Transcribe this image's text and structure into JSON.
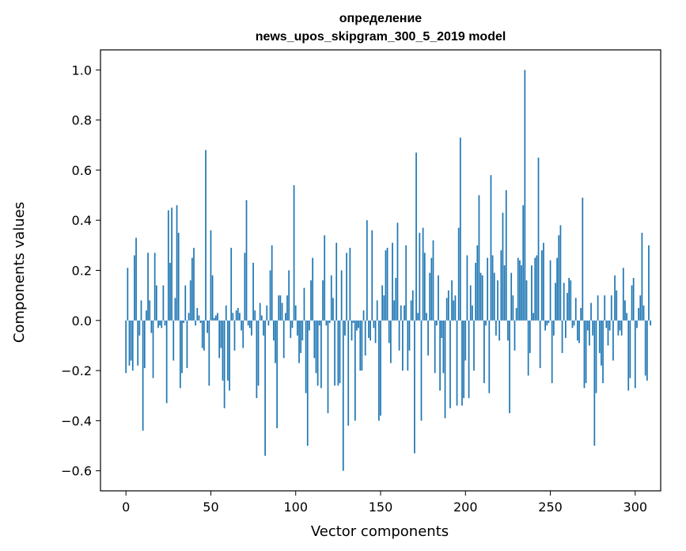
{
  "chart_data": {
    "type": "bar",
    "title_lines": [
      "определение",
      "news_upos_skipgram_300_5_2019 model"
    ],
    "xlabel": "Vector components",
    "ylabel": "Components values",
    "xlim": [
      -15,
      315
    ],
    "ylim": [
      -0.68,
      1.08
    ],
    "x_ticks": [
      0,
      50,
      100,
      150,
      200,
      250,
      300
    ],
    "y_ticks": [
      -0.6,
      -0.4,
      -0.2,
      0.0,
      0.2,
      0.4,
      0.6,
      0.8,
      1.0
    ],
    "y_tick_labels": [
      "−0.6",
      "−0.4",
      "−0.2",
      "0.0",
      "0.2",
      "0.4",
      "0.6",
      "0.8",
      "1.0"
    ],
    "grid": false,
    "bar_color": "#1f77b4",
    "values": [
      -0.21,
      0.21,
      -0.18,
      -0.16,
      -0.2,
      0.26,
      0.33,
      -0.18,
      -0.06,
      0.08,
      -0.44,
      -0.19,
      0.04,
      0.27,
      0.08,
      -0.05,
      -0.23,
      0.27,
      0.14,
      -0.03,
      -0.02,
      -0.03,
      0.14,
      -0.02,
      -0.33,
      0.44,
      0.23,
      0.45,
      -0.16,
      0.09,
      0.46,
      0.35,
      -0.27,
      -0.21,
      -0.01,
      0.14,
      -0.19,
      0.03,
      0.16,
      0.25,
      0.29,
      -0.02,
      0.05,
      0.02,
      -0.01,
      -0.11,
      -0.12,
      0.68,
      -0.05,
      -0.26,
      0.36,
      0.18,
      0.01,
      0.02,
      0.03,
      -0.15,
      -0.11,
      -0.24,
      -0.35,
      0.06,
      -0.24,
      -0.28,
      0.29,
      0.03,
      -0.12,
      0.04,
      0.05,
      0.03,
      -0.04,
      -0.11,
      0.27,
      0.48,
      -0.02,
      -0.03,
      -0.06,
      0.23,
      0.04,
      -0.31,
      -0.26,
      0.07,
      0.02,
      -0.06,
      -0.54,
      0.06,
      -0.02,
      0.2,
      0.3,
      -0.08,
      -0.17,
      -0.43,
      0.1,
      0.1,
      0.07,
      -0.15,
      0.03,
      0.1,
      0.2,
      -0.07,
      -0.03,
      0.54,
      0.06,
      -0.06,
      -0.17,
      -0.13,
      -0.08,
      0.13,
      -0.29,
      -0.5,
      -0.04,
      0.16,
      0.25,
      -0.15,
      -0.21,
      -0.26,
      -0.02,
      -0.27,
      0.16,
      0.34,
      -0.02,
      -0.37,
      -0.01,
      0.18,
      0.09,
      -0.26,
      0.31,
      -0.26,
      -0.25,
      0.2,
      -0.6,
      -0.06,
      0.27,
      -0.42,
      0.29,
      -0.08,
      -0.01,
      -0.4,
      -0.04,
      -0.03,
      -0.2,
      -0.2,
      0.04,
      -0.14,
      0.4,
      -0.07,
      -0.08,
      0.36,
      -0.03,
      -0.09,
      0.08,
      -0.4,
      -0.38,
      0.14,
      0.1,
      0.28,
      0.29,
      -0.09,
      -0.17,
      0.31,
      0.08,
      0.17,
      0.39,
      -0.12,
      0.06,
      -0.2,
      0.06,
      0.3,
      -0.2,
      -0.12,
      0.08,
      0.12,
      -0.53,
      0.67,
      0.03,
      0.35,
      -0.4,
      0.37,
      0.27,
      0.03,
      -0.14,
      0.19,
      0.25,
      0.32,
      -0.21,
      -0.02,
      0.18,
      -0.28,
      -0.07,
      -0.21,
      -0.39,
      0.09,
      0.12,
      -0.35,
      0.16,
      0.08,
      0.1,
      -0.34,
      0.37,
      0.73,
      -0.34,
      -0.31,
      -0.16,
      0.26,
      -0.31,
      0.14,
      0.06,
      -0.2,
      0.23,
      0.3,
      0.5,
      0.19,
      0.18,
      -0.25,
      -0.02,
      0.25,
      -0.29,
      0.58,
      0.26,
      0.19,
      -0.06,
      0.16,
      -0.08,
      0.28,
      0.43,
      0.22,
      0.52,
      -0.08,
      -0.37,
      0.19,
      0.1,
      -0.12,
      0.05,
      0.25,
      0.24,
      0.22,
      0.46,
      1.0,
      0.16,
      -0.22,
      -0.13,
      0.22,
      0.03,
      0.25,
      0.26,
      0.65,
      -0.19,
      0.28,
      0.31,
      -0.04,
      -0.02,
      -0.01,
      0.24,
      -0.25,
      -0.06,
      0.15,
      0.25,
      0.34,
      0.38,
      -0.13,
      0.15,
      -0.07,
      0.11,
      0.17,
      0.16,
      -0.03,
      -0.02,
      0.09,
      -0.08,
      -0.09,
      0.05,
      0.49,
      -0.27,
      -0.25,
      -0.04,
      -0.1,
      0.07,
      -0.06,
      -0.5,
      -0.29,
      0.1,
      -0.13,
      -0.18,
      -0.25,
      0.1,
      -0.03,
      -0.1,
      -0.04,
      0.1,
      -0.16,
      0.18,
      0.12,
      -0.06,
      -0.04,
      -0.06,
      0.21,
      0.08,
      0.03,
      -0.28,
      -0.23,
      0.14,
      0.17,
      -0.27,
      -0.03,
      0.05,
      0.1,
      0.35,
      0.06,
      -0.22,
      -0.24,
      0.3,
      -0.02
    ]
  }
}
